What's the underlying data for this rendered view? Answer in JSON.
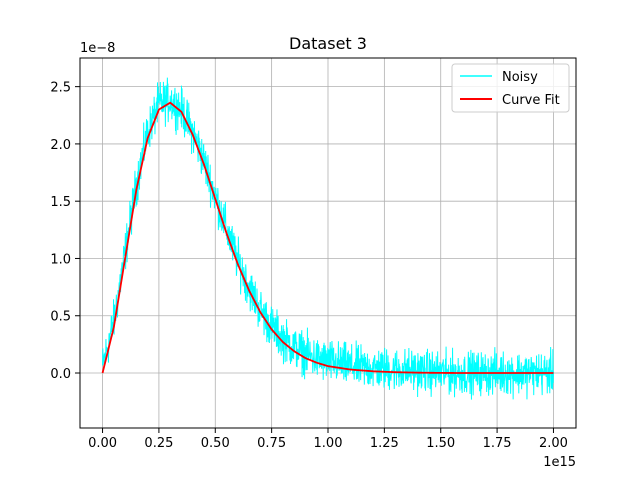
{
  "chart_data": {
    "type": "line",
    "title": "Dataset 3",
    "xlabel": "",
    "ylabel": "",
    "x_offset_label": "1e15",
    "y_offset_label": "1e−8",
    "xlim": [
      -0.1,
      2.1
    ],
    "ylim": [
      -0.48,
      2.75
    ],
    "x_ticks": [
      0,
      0.25,
      0.5,
      0.75,
      1.0,
      1.25,
      1.5,
      1.75,
      2.0
    ],
    "x_tick_labels": [
      "0.00",
      "0.25",
      "0.50",
      "0.75",
      "1.00",
      "1.25",
      "1.50",
      "1.75",
      "2.00"
    ],
    "y_ticks": [
      0,
      0.5,
      1.0,
      1.5,
      2.0,
      2.5
    ],
    "y_tick_labels": [
      "0.0",
      "0.5",
      "1.0",
      "1.5",
      "2.0",
      "2.5"
    ],
    "grid": true,
    "legend_position": "top-right",
    "series": [
      {
        "name": "Noisy",
        "color": "#00FFFF",
        "style": "noisy",
        "x": [
          0.0,
          0.05,
          0.1,
          0.15,
          0.2,
          0.25,
          0.3,
          0.35,
          0.4,
          0.45,
          0.5,
          0.55,
          0.6,
          0.65,
          0.7,
          0.75,
          0.8,
          0.85,
          0.9,
          0.95,
          1.0,
          1.1,
          1.2,
          1.3,
          1.4,
          1.5,
          1.6,
          1.7,
          1.8,
          1.9,
          2.0
        ],
        "y": [
          0.05,
          0.45,
          1.05,
          1.65,
          2.1,
          2.35,
          2.38,
          2.3,
          2.1,
          1.85,
          1.55,
          1.25,
          0.98,
          0.75,
          0.55,
          0.4,
          0.3,
          0.22,
          0.17,
          0.12,
          0.1,
          0.06,
          0.04,
          0.03,
          0.02,
          0.0,
          0.0,
          0.0,
          0.0,
          0.0,
          0.0
        ],
        "noise_amplitude": 0.13
      },
      {
        "name": "Curve Fit",
        "color": "#FF0000",
        "style": "solid",
        "x": [
          0.0,
          0.05,
          0.1,
          0.15,
          0.2,
          0.25,
          0.3,
          0.35,
          0.4,
          0.45,
          0.5,
          0.55,
          0.6,
          0.65,
          0.7,
          0.75,
          0.8,
          0.85,
          0.9,
          0.95,
          1.0,
          1.1,
          1.2,
          1.3,
          1.4,
          1.5,
          1.6,
          1.7,
          1.8,
          1.9,
          2.0
        ],
        "y": [
          0.0,
          0.4,
          1.0,
          1.6,
          2.05,
          2.3,
          2.36,
          2.28,
          2.08,
          1.82,
          1.52,
          1.22,
          0.95,
          0.72,
          0.53,
          0.38,
          0.27,
          0.19,
          0.13,
          0.09,
          0.06,
          0.03,
          0.015,
          0.007,
          0.003,
          0.001,
          0.0,
          0.0,
          0.0,
          0.0,
          0.0
        ]
      }
    ]
  }
}
